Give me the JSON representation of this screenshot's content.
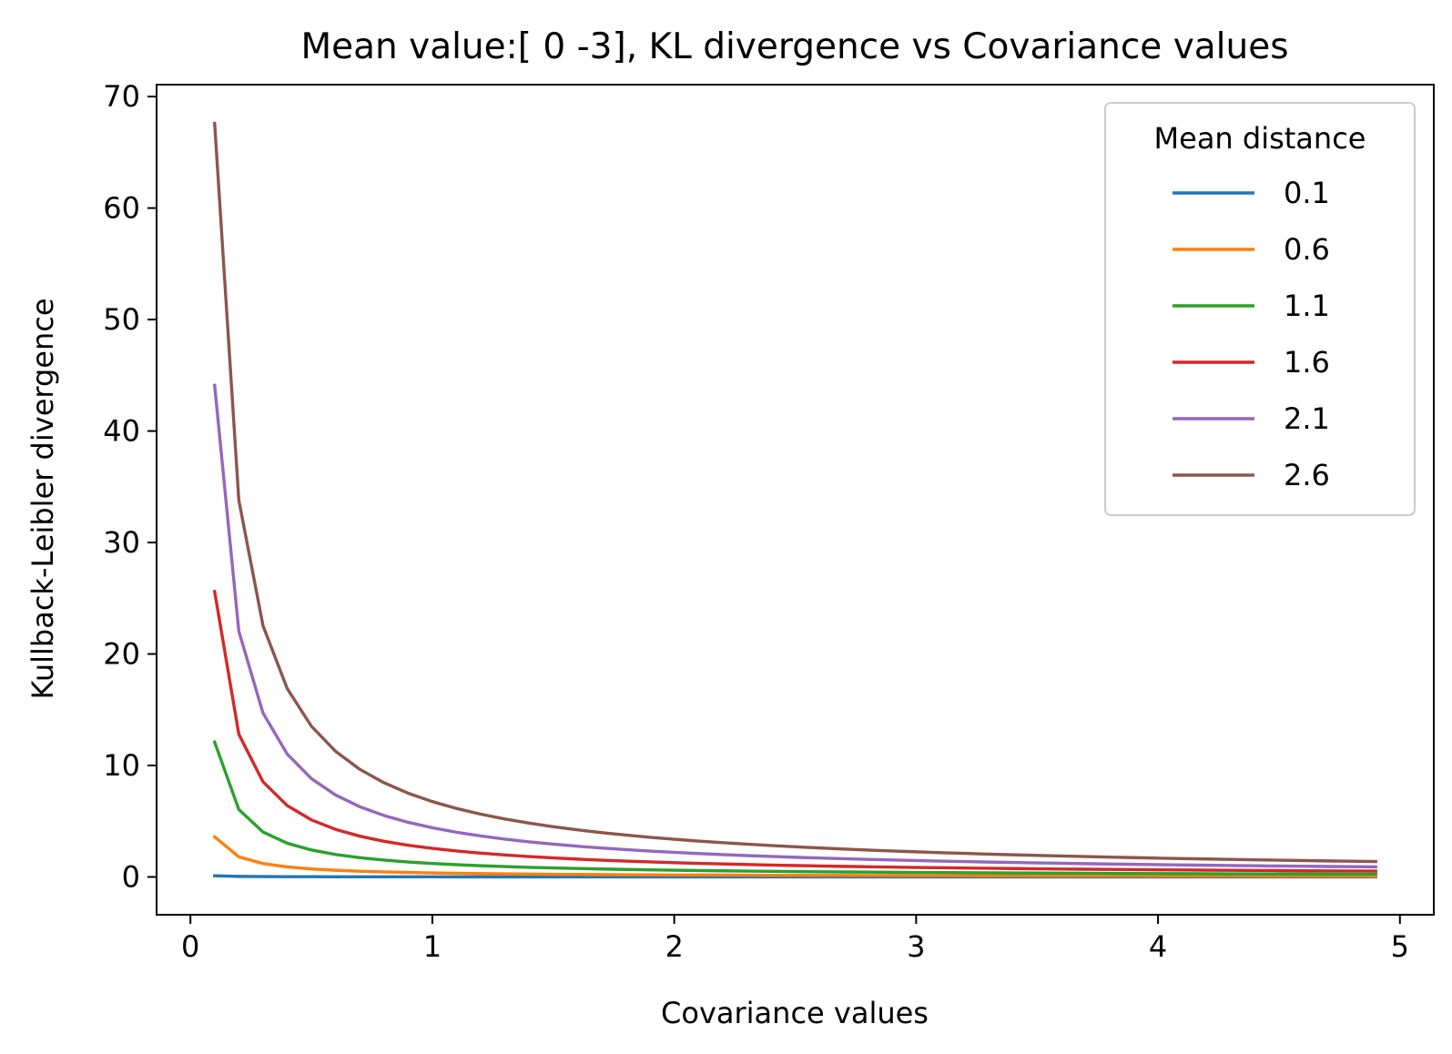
{
  "chart_data": {
    "type": "line",
    "title": "Mean value:[ 0 -3], KL divergence vs Covariance values",
    "xlabel": "Covariance values",
    "ylabel": "Kullback-Leibler divergence",
    "xlim": [
      -0.14,
      5.14
    ],
    "ylim": [
      -3.39,
      71.07
    ],
    "xticks": [
      0,
      1,
      2,
      3,
      4,
      5
    ],
    "yticks": [
      0,
      10,
      20,
      30,
      40,
      50,
      60,
      70
    ],
    "grid": false,
    "legend": {
      "title": "Mean distance",
      "placement": "top-right"
    },
    "x": [
      0.1,
      0.2,
      0.3,
      0.4,
      0.5,
      0.6,
      0.7,
      0.8,
      0.9,
      1.0,
      1.1,
      1.2,
      1.3,
      1.4,
      1.5,
      1.6,
      1.7,
      1.8,
      1.9,
      2.0,
      2.1,
      2.2,
      2.3,
      2.4,
      2.5,
      2.6,
      2.7,
      2.8,
      2.9,
      3.0,
      3.1,
      3.2,
      3.3,
      3.4,
      3.5,
      3.6,
      3.7,
      3.8,
      3.9,
      4.0,
      4.1,
      4.2,
      4.3,
      4.4,
      4.5,
      4.6,
      4.7,
      4.8,
      4.9
    ],
    "series": [
      {
        "name": "0.1",
        "color": "#1f77b4",
        "values": [
          0.1,
          0.05,
          0.033,
          0.025,
          0.02,
          0.017,
          0.014,
          0.013,
          0.011,
          0.01,
          0.009,
          0.008,
          0.008,
          0.007,
          0.007,
          0.006,
          0.006,
          0.006,
          0.005,
          0.005,
          0.005,
          0.005,
          0.004,
          0.004,
          0.004,
          0.004,
          0.004,
          0.004,
          0.003,
          0.003,
          0.003,
          0.003,
          0.003,
          0.003,
          0.003,
          0.003,
          0.003,
          0.003,
          0.003,
          0.003,
          0.002,
          0.002,
          0.002,
          0.002,
          0.002,
          0.002,
          0.002,
          0.002,
          0.002
        ]
      },
      {
        "name": "0.6",
        "color": "#ff7f0e",
        "values": [
          3.6,
          1.8,
          1.2,
          0.9,
          0.72,
          0.6,
          0.514,
          0.45,
          0.4,
          0.36,
          0.327,
          0.3,
          0.277,
          0.257,
          0.24,
          0.225,
          0.212,
          0.2,
          0.189,
          0.18,
          0.171,
          0.164,
          0.157,
          0.15,
          0.144,
          0.138,
          0.133,
          0.129,
          0.124,
          0.12,
          0.116,
          0.113,
          0.109,
          0.106,
          0.103,
          0.1,
          0.097,
          0.095,
          0.092,
          0.09,
          0.088,
          0.086,
          0.084,
          0.082,
          0.08,
          0.078,
          0.077,
          0.075,
          0.073
        ]
      },
      {
        "name": "1.1",
        "color": "#2ca02c",
        "values": [
          12.1,
          6.05,
          4.033,
          3.025,
          2.42,
          2.017,
          1.729,
          1.513,
          1.344,
          1.21,
          1.1,
          1.008,
          0.931,
          0.864,
          0.807,
          0.756,
          0.712,
          0.672,
          0.637,
          0.605,
          0.576,
          0.55,
          0.526,
          0.504,
          0.484,
          0.465,
          0.448,
          0.432,
          0.417,
          0.403,
          0.39,
          0.378,
          0.367,
          0.356,
          0.346,
          0.336,
          0.327,
          0.318,
          0.31,
          0.303,
          0.295,
          0.288,
          0.281,
          0.275,
          0.269,
          0.263,
          0.257,
          0.252,
          0.247
        ]
      },
      {
        "name": "1.6",
        "color": "#d62728",
        "values": [
          25.6,
          12.8,
          8.533,
          6.4,
          5.12,
          4.267,
          3.657,
          3.2,
          2.844,
          2.56,
          2.327,
          2.133,
          1.969,
          1.829,
          1.707,
          1.6,
          1.506,
          1.422,
          1.347,
          1.28,
          1.219,
          1.164,
          1.113,
          1.067,
          1.024,
          0.985,
          0.948,
          0.914,
          0.883,
          0.853,
          0.826,
          0.8,
          0.776,
          0.753,
          0.731,
          0.711,
          0.692,
          0.674,
          0.656,
          0.64,
          0.624,
          0.61,
          0.595,
          0.582,
          0.569,
          0.557,
          0.545,
          0.533,
          0.522
        ]
      },
      {
        "name": "2.1",
        "color": "#9467bd",
        "values": [
          44.1,
          22.05,
          14.7,
          11.025,
          8.82,
          7.35,
          6.3,
          5.513,
          4.9,
          4.41,
          4.009,
          3.675,
          3.392,
          3.15,
          2.94,
          2.756,
          2.594,
          2.45,
          2.321,
          2.205,
          2.1,
          2.005,
          1.917,
          1.838,
          1.764,
          1.696,
          1.633,
          1.575,
          1.521,
          1.47,
          1.423,
          1.378,
          1.336,
          1.297,
          1.26,
          1.225,
          1.192,
          1.161,
          1.131,
          1.103,
          1.076,
          1.05,
          1.026,
          1.002,
          0.98,
          0.959,
          0.938,
          0.919,
          0.9
        ]
      },
      {
        "name": "2.6",
        "color": "#8c564b",
        "values": [
          67.6,
          33.8,
          22.533,
          16.9,
          13.52,
          11.267,
          9.657,
          8.45,
          7.511,
          6.76,
          6.145,
          5.633,
          5.2,
          4.829,
          4.507,
          4.225,
          3.976,
          3.756,
          3.558,
          3.38,
          3.219,
          3.073,
          2.939,
          2.817,
          2.704,
          2.6,
          2.504,
          2.414,
          2.331,
          2.253,
          2.181,
          2.113,
          2.048,
          1.988,
          1.931,
          1.878,
          1.827,
          1.779,
          1.733,
          1.69,
          1.649,
          1.61,
          1.572,
          1.536,
          1.502,
          1.47,
          1.438,
          1.408,
          1.38
        ]
      }
    ]
  }
}
